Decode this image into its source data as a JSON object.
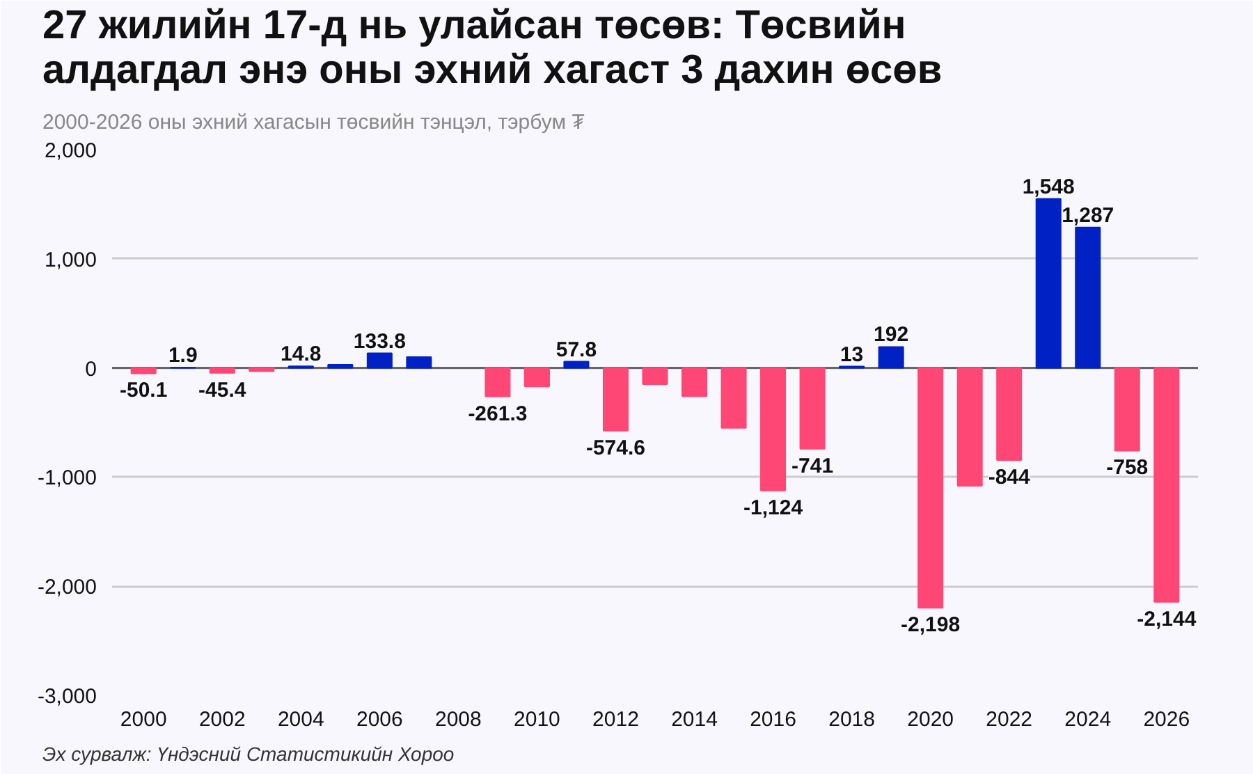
{
  "chart_data": {
    "type": "bar",
    "title": "27 жилийн 17-д нь улайсан төсөв: Төсвийн\nалдагдал энэ оны эхний хагаст 3 дахин өсөв",
    "subtitle": "2000-2026 оны эхний хагасын төсвийн тэнцэл, тэрбум ₮",
    "annotations": [
      "Эх сурвалж: Үндэсний Статистикийн Хороо"
    ],
    "categories": [
      "2000",
      null,
      "2002",
      null,
      "2004",
      null,
      "2006",
      null,
      "2008",
      null,
      "2010",
      null,
      "2012",
      null,
      "2014",
      null,
      "2016",
      null,
      "2018",
      null,
      "2020",
      null,
      "2022",
      null,
      "2024",
      null,
      "2026"
    ],
    "values": [
      -50.1,
      1.9,
      -45.4,
      -30,
      14.8,
      30,
      133.8,
      100,
      null,
      -261.3,
      -170,
      57.8,
      -574.6,
      -150,
      -260,
      -550,
      -1124,
      -741,
      13,
      192,
      -2198,
      -1080,
      -844,
      1548,
      1287,
      -758,
      -2144
    ],
    "value_labels": [
      "-50.1",
      "1.9",
      "-45.4",
      null,
      "14.8",
      null,
      "133.8",
      null,
      null,
      "-261.3",
      null,
      "57.8",
      "-574.6",
      null,
      null,
      null,
      "-1,124",
      "-741",
      "13",
      "192",
      "-2,198",
      null,
      "-844",
      "1,548",
      "1,287",
      "-758",
      "-2,144"
    ],
    "colors": [
      "#ff4775",
      "#0022c4",
      "#ff4775",
      "#ff4775",
      "#0022c4",
      "#0022c4",
      "#0022c4",
      "#0022c4",
      "#ff4775",
      "#ff4775",
      "#ff4775",
      "#0022c4",
      "#ff4775",
      "#ff4775",
      "#ff4775",
      "#ff4775",
      "#ff4775",
      "#ff4775",
      "#0022c4",
      "#0022c4",
      "#ff4775",
      "#ff4775",
      "#ff4775",
      "#0022c4",
      "#0022c4",
      "#ff4775",
      "#ff4775"
    ],
    "ylim": [
      -3000,
      2000
    ],
    "yticks": [
      {
        "value": -3000,
        "label": "-3,000"
      },
      {
        "value": -2000,
        "label": "-2,000"
      },
      {
        "value": -1000,
        "label": "-1,000"
      },
      0,
      {
        "value": 1000,
        "label": "1,000"
      },
      {
        "value": 2000,
        "label": "2,000"
      }
    ],
    "grid": "y"
  }
}
